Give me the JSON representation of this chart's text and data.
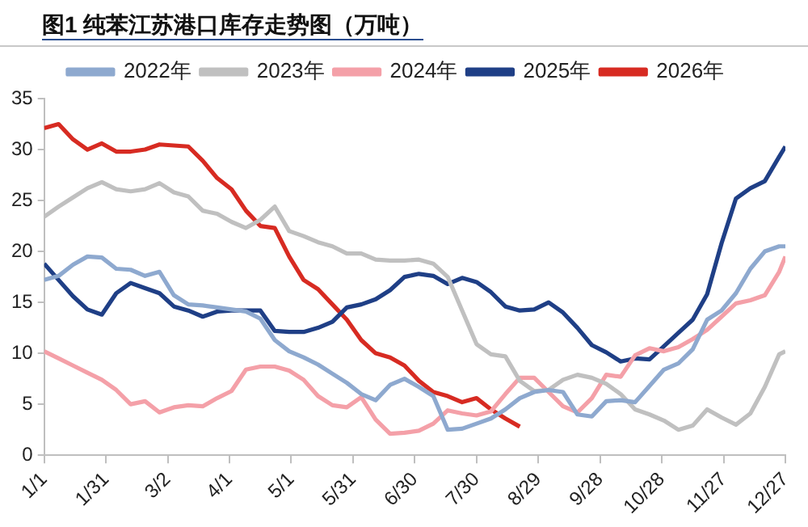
{
  "chart_data": {
    "type": "line",
    "title": "图1 纯苯江苏港口库存走势图（万吨）",
    "x": [
      "--01-01",
      "--01-08",
      "--01-15",
      "--01-22",
      "--01-29",
      "--02-05",
      "--02-12",
      "--02-19",
      "--02-26",
      "--03-05",
      "--03-12",
      "--03-19",
      "--03-26",
      "--04-02",
      "--04-09",
      "--04-16",
      "--04-23",
      "--04-30",
      "--05-07",
      "--05-14",
      "--05-21",
      "--05-28",
      "--06-04",
      "--06-11",
      "--06-18",
      "--06-25",
      "--07-02",
      "--07-09",
      "--07-16",
      "--07-23",
      "--07-30",
      "--08-06",
      "--08-13",
      "--08-20",
      "--08-27",
      "--09-03",
      "--09-10",
      "--09-17",
      "--09-24",
      "--10-01",
      "--10-08",
      "--10-15",
      "--10-22",
      "--10-29",
      "--11-05",
      "--11-12",
      "--11-19",
      "--11-26",
      "--12-03",
      "--12-10",
      "--12-17",
      "--12-24",
      "--12-27"
    ],
    "series": [
      {
        "name": "2022年",
        "color": "#8ea9cf",
        "values": [
          17.2,
          17.6,
          18.7,
          19.5,
          19.4,
          18.3,
          18.2,
          17.6,
          18.0,
          15.7,
          14.8,
          14.7,
          14.5,
          14.3,
          14.1,
          13.4,
          11.3,
          10.2,
          9.6,
          8.9,
          8.0,
          7.1,
          6.0,
          5.4,
          6.9,
          7.5,
          6.7,
          5.8,
          2.5,
          2.6,
          3.1,
          3.6,
          4.5,
          5.6,
          6.2,
          6.4,
          6.2,
          4.0,
          3.8,
          5.3,
          5.4,
          5.2,
          6.8,
          8.4,
          9.0,
          10.4,
          13.3,
          14.2,
          15.9,
          18.3,
          20.0,
          20.5,
          20.5
        ]
      },
      {
        "name": "2023年",
        "color": "#c0c0c0",
        "values": [
          23.4,
          24.4,
          25.3,
          26.2,
          26.8,
          26.1,
          25.9,
          26.1,
          26.7,
          25.8,
          25.4,
          24.0,
          23.7,
          22.9,
          22.3,
          23.1,
          24.4,
          22.0,
          21.5,
          20.9,
          20.5,
          19.8,
          19.8,
          19.2,
          19.1,
          19.1,
          19.2,
          18.8,
          17.5,
          14.2,
          10.9,
          9.9,
          9.7,
          7.3,
          6.3,
          6.4,
          7.4,
          7.9,
          7.6,
          7.0,
          6.0,
          4.5,
          4.0,
          3.4,
          2.5,
          2.9,
          4.5,
          3.7,
          3.0,
          4.1,
          6.7,
          9.9,
          10.2
        ]
      },
      {
        "name": "2024年",
        "color": "#f4a0a8",
        "values": [
          10.2,
          9.5,
          8.8,
          8.1,
          7.4,
          6.4,
          5.0,
          5.3,
          4.2,
          4.7,
          4.9,
          4.8,
          5.6,
          6.3,
          8.4,
          8.7,
          8.7,
          8.3,
          7.4,
          5.8,
          4.9,
          4.7,
          5.7,
          3.5,
          2.1,
          2.2,
          2.4,
          3.1,
          4.4,
          4.1,
          3.9,
          4.3,
          6.0,
          7.6,
          7.6,
          6.2,
          4.8,
          4.2,
          5.6,
          7.9,
          7.7,
          9.8,
          10.5,
          10.2,
          10.6,
          11.4,
          12.3,
          13.6,
          14.9,
          15.2,
          15.7,
          18.0,
          19.5
        ]
      },
      {
        "name": "2025年",
        "color": "#1f3f86",
        "values": [
          18.8,
          17.2,
          15.6,
          14.3,
          13.8,
          15.9,
          16.9,
          16.4,
          15.9,
          14.6,
          14.2,
          13.6,
          14.1,
          14.2,
          14.2,
          14.2,
          12.2,
          12.1,
          12.1,
          12.5,
          13.1,
          14.5,
          14.8,
          15.3,
          16.2,
          17.5,
          17.8,
          17.6,
          16.8,
          17.4,
          17.0,
          16.0,
          14.6,
          14.2,
          14.3,
          15.0,
          14.0,
          12.5,
          10.8,
          10.1,
          9.2,
          9.5,
          9.4,
          10.7,
          12.0,
          13.3,
          15.8,
          20.8,
          25.2,
          26.2,
          26.9,
          29.3,
          30.3
        ]
      },
      {
        "name": "2026年",
        "color": "#d72b22",
        "values": [
          32.1,
          32.5,
          31.0,
          30.0,
          30.6,
          29.8,
          29.8,
          30.0,
          30.5,
          30.4,
          30.3,
          28.9,
          27.2,
          26.1,
          24.0,
          22.5,
          22.3,
          19.5,
          17.2,
          16.3,
          14.8,
          13.3,
          11.3,
          10.0,
          9.6,
          8.8,
          7.3,
          6.2,
          5.8,
          5.2,
          5.6,
          4.5,
          3.6,
          2.8,
          null,
          null,
          null,
          null,
          null,
          null,
          null,
          null,
          null,
          null,
          null,
          null,
          null,
          null,
          null,
          null,
          null,
          null,
          null
        ]
      }
    ],
    "xlim": [
      "--01-01",
      "--12-27"
    ],
    "xticks": [
      {
        "value": "--01-01",
        "label": "1/1"
      },
      {
        "value": "--01-31",
        "label": "1/31"
      },
      {
        "value": "--03-02",
        "label": "3/2"
      },
      {
        "value": "--04-01",
        "label": "4/1"
      },
      {
        "value": "--05-01",
        "label": "5/1"
      },
      {
        "value": "--05-31",
        "label": "5/31"
      },
      {
        "value": "--06-30",
        "label": "6/30"
      },
      {
        "value": "--07-30",
        "label": "7/30"
      },
      {
        "value": "--08-29",
        "label": "8/29"
      },
      {
        "value": "--09-28",
        "label": "9/28"
      },
      {
        "value": "--10-28",
        "label": "10/28"
      },
      {
        "value": "--11-27",
        "label": "11/27"
      },
      {
        "value": "--12-27",
        "label": "12/27"
      }
    ],
    "ylim": [
      0,
      35
    ],
    "yticks": [
      0,
      5,
      10,
      15,
      20,
      25,
      30,
      35
    ],
    "grid": false,
    "legend": "top",
    "marker": "none",
    "line_style": "solid"
  }
}
